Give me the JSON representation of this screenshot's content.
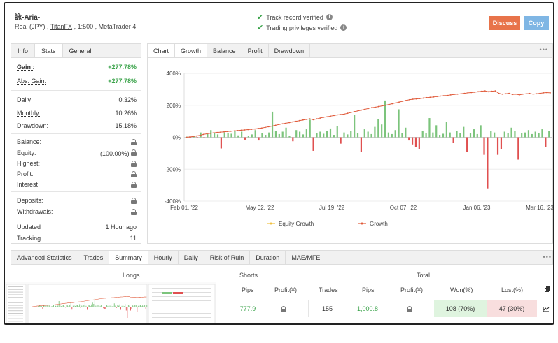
{
  "header": {
    "account_name": "詠-Aria-",
    "sub_prefix": "Real (JPY) ,",
    "broker": "TitanFX",
    "sub_suffix": ", 1:500 , MetaTrader 4",
    "track_record": "Track record verified",
    "trading_privileges": "Trading privileges verified",
    "discuss_label": "Discuss",
    "copy_label": "Copy"
  },
  "left_tabs": [
    "Info",
    "Stats",
    "General"
  ],
  "stats": {
    "gain_label": "Gain :",
    "gain_value": "+277.78%",
    "abs_gain_label": "Abs. Gain:",
    "abs_gain_value": "+277.78%",
    "daily_label": "Daily",
    "daily_value": "0.32%",
    "monthly_label": "Monthly:",
    "monthly_value": "10.26%",
    "drawdown_label": "Drawdown:",
    "drawdown_value": "15.18%",
    "balance_label": "Balance:",
    "equity_label": "Equity:",
    "equity_value": "(100.00%)",
    "highest_label": "Highest:",
    "profit_label": "Profit:",
    "interest_label": "Interest",
    "deposits_label": "Deposits:",
    "withdrawals_label": "Withdrawals:",
    "updated_label": "Updated",
    "updated_value": "1 Hour ago",
    "tracking_label": "Tracking",
    "tracking_value": "11"
  },
  "chart_tabs": [
    "Chart",
    "Growth",
    "Balance",
    "Profit",
    "Drawdown"
  ],
  "chart_data": {
    "type": "bar",
    "y_tick_labels": [
      "400%",
      "200%",
      "0%",
      "-200%",
      "-400%"
    ],
    "x_tick_labels": [
      "Feb 01, '22",
      "May 02, '22",
      "Jul 19, '22",
      "Oct 07, '22",
      "Jan 06, '23",
      "Mar 16, '23"
    ],
    "ylim": [
      -400,
      400
    ],
    "legend": [
      "Equity Growth",
      "Growth"
    ],
    "legend_position": "bottom",
    "colors": {
      "positive_bar": "#7cc47c",
      "negative_bar": "#e05050",
      "growth_line": "#e05a3a",
      "equity_line": "#f0c040"
    },
    "bars": [
      4,
      -5,
      6,
      -4,
      30,
      -3,
      20,
      45,
      25,
      18,
      -70,
      30,
      25,
      22,
      40,
      12,
      35,
      -15,
      10,
      18,
      45,
      -20,
      25,
      15,
      30,
      160,
      40,
      20,
      35,
      60,
      10,
      -25,
      45,
      35,
      18,
      50,
      110,
      -85,
      28,
      35,
      22,
      40,
      55,
      15,
      70,
      -40,
      30,
      18,
      40,
      140,
      25,
      -90,
      50,
      35,
      20,
      65,
      115,
      80,
      230,
      30,
      20,
      45,
      175,
      25,
      60,
      -20,
      -45,
      -60,
      -75,
      40,
      25,
      120,
      30,
      75,
      15,
      22,
      95,
      30,
      -35,
      40,
      28,
      65,
      -90,
      25,
      50,
      20,
      75,
      -110,
      -320,
      40,
      30,
      -110,
      -75,
      35,
      25,
      60,
      40,
      -140,
      25,
      30,
      45,
      20,
      35,
      25,
      50,
      -60,
      40
    ],
    "growth": [
      0,
      2,
      5,
      8,
      12,
      18,
      22,
      25,
      28,
      30,
      32,
      34,
      36,
      38,
      40,
      42,
      44,
      46,
      48,
      50,
      52,
      55,
      58,
      62,
      66,
      70,
      75,
      80,
      84,
      88,
      92,
      96,
      100,
      104,
      108,
      112,
      115,
      110,
      115,
      120,
      125,
      128,
      132,
      136,
      140,
      142,
      145,
      150,
      155,
      160,
      165,
      170,
      175,
      180,
      185,
      188,
      192,
      196,
      200,
      205,
      210,
      215,
      220,
      225,
      230,
      235,
      238,
      240,
      242,
      245,
      248,
      250,
      252,
      255,
      258,
      260,
      262,
      265,
      268,
      270,
      272,
      275,
      278,
      280,
      282,
      285,
      288,
      290,
      285,
      288,
      290,
      275,
      270,
      272,
      275,
      268,
      270,
      265,
      270,
      272,
      274,
      270,
      272,
      275,
      278,
      280,
      278
    ]
  },
  "adv": {
    "tabs": [
      "Advanced Statistics",
      "Trades",
      "Summary",
      "Hourly",
      "Daily",
      "Risk of Ruin",
      "Duration",
      "MAE/MFE"
    ],
    "longs_label": "Longs",
    "shorts_label": "Shorts",
    "total_label": "Total",
    "col_pips": "Pips",
    "col_profit": "Profit(¥)",
    "col_trades": "Trades",
    "col_pips2": "Pips",
    "col_profit2": "Profit(¥)",
    "col_won": "Won(%)",
    "col_lost": "Lost(%)",
    "shorts_pips": "777.9",
    "total_trades": "155",
    "total_pips": "1,000.8",
    "won": "108 (70%)",
    "lost": "47 (30%)"
  }
}
